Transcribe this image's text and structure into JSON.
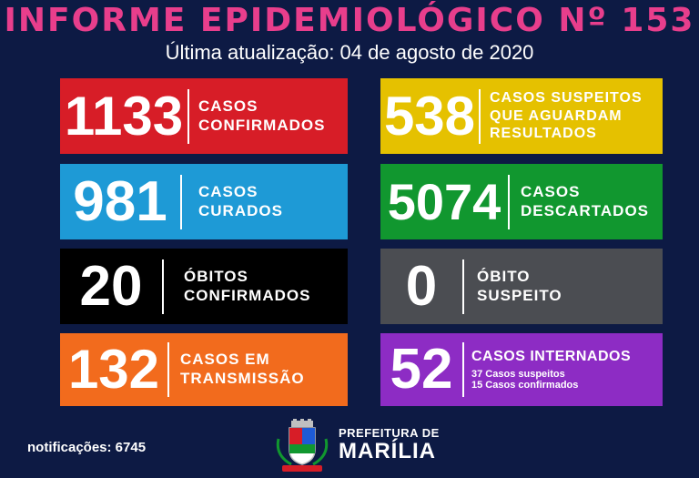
{
  "header": {
    "title": "INFORME EPIDEMIOLÓGICO Nº 153",
    "subtitle": "Última atualização: 04 de agosto de 2020"
  },
  "cards": [
    {
      "value": "1133",
      "line1": "CASOS",
      "line2": "CONFIRMADOS",
      "color": "#d71d27"
    },
    {
      "value": "981",
      "line1": "CASOS",
      "line2": "CURADOS",
      "color": "#1e9ad6"
    },
    {
      "value": "20",
      "line1": "ÓBITOS",
      "line2": "CONFIRMADOS",
      "color": "#000000"
    },
    {
      "value": "132",
      "line1": "CASOS EM",
      "line2": "TRANSMISSÃO",
      "color": "#f26b1d"
    },
    {
      "value": "538",
      "line1": "CASOS SUSPEITOS",
      "line2": "QUE AGUARDAM",
      "line3": "RESULTADOS",
      "color": "#e5c100"
    },
    {
      "value": "5074",
      "line1": "CASOS",
      "line2": "DESCARTADOS",
      "color": "#11972f"
    },
    {
      "value": "0",
      "line1": "ÓBITO",
      "line2": "SUSPEITO",
      "color": "#4b4d52"
    },
    {
      "value": "52",
      "line1": "CASOS INTERNADOS",
      "detail1": "37 Casos suspeitos",
      "detail2": "15 Casos confirmados",
      "color": "#8d2cc4"
    }
  ],
  "footer": {
    "notifications": "notificações: 6745",
    "logo_top": "PREFEITURA DE",
    "logo_bottom": "MARÍLIA"
  }
}
